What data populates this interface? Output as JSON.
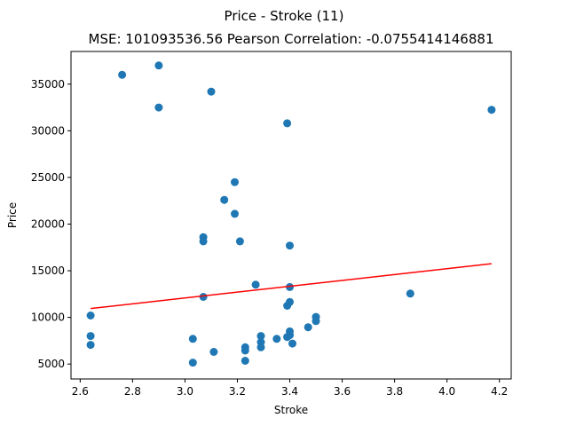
{
  "chart_data": {
    "type": "scatter",
    "title": "Price - Stroke (11)",
    "subtitle": "MSE: 101093536.56 Pearson Correlation: -0.0755414146881",
    "xlabel": "Stroke",
    "ylabel": "Price",
    "xlim": [
      2.565,
      4.245
    ],
    "ylim": [
      3400,
      38500
    ],
    "x_ticks": [
      "2.6",
      "2.8",
      "3.0",
      "3.2",
      "3.4",
      "3.6",
      "3.8",
      "4.0",
      "4.2"
    ],
    "x_tick_values": [
      2.6,
      2.8,
      3.0,
      3.2,
      3.4,
      3.6,
      3.8,
      4.0,
      4.2
    ],
    "y_ticks": [
      "5000",
      "10000",
      "15000",
      "20000",
      "25000",
      "30000",
      "35000"
    ],
    "y_tick_values": [
      5000,
      10000,
      15000,
      20000,
      25000,
      30000,
      35000
    ],
    "grid": false,
    "colors": {
      "points": "#1f77b4",
      "fit_line": "#ff0000"
    },
    "points": [
      [
        2.64,
        10200
      ],
      [
        2.64,
        8000
      ],
      [
        2.64,
        7050
      ],
      [
        2.76,
        36000
      ],
      [
        2.9,
        37000
      ],
      [
        2.9,
        32500
      ],
      [
        3.03,
        7700
      ],
      [
        3.03,
        5150
      ],
      [
        3.07,
        18600
      ],
      [
        3.07,
        18150
      ],
      [
        3.07,
        12200
      ],
      [
        3.1,
        34200
      ],
      [
        3.11,
        6300
      ],
      [
        3.15,
        22600
      ],
      [
        3.19,
        24500
      ],
      [
        3.19,
        21100
      ],
      [
        3.21,
        18150
      ],
      [
        3.23,
        6800
      ],
      [
        3.23,
        6450
      ],
      [
        3.23,
        5350
      ],
      [
        3.27,
        13500
      ],
      [
        3.29,
        8000
      ],
      [
        3.29,
        7350
      ],
      [
        3.29,
        6800
      ],
      [
        3.35,
        7700
      ],
      [
        3.39,
        30800
      ],
      [
        3.39,
        11250
      ],
      [
        3.39,
        7900
      ],
      [
        3.4,
        17700
      ],
      [
        3.4,
        13250
      ],
      [
        3.4,
        11650
      ],
      [
        3.4,
        8500
      ],
      [
        3.4,
        8100
      ],
      [
        3.41,
        7200
      ],
      [
        3.47,
        8950
      ],
      [
        3.5,
        10050
      ],
      [
        3.5,
        9600
      ],
      [
        3.86,
        12550
      ],
      [
        4.17,
        32250
      ]
    ],
    "fit_line": [
      [
        2.64,
        10950
      ],
      [
        4.17,
        15750
      ]
    ]
  }
}
